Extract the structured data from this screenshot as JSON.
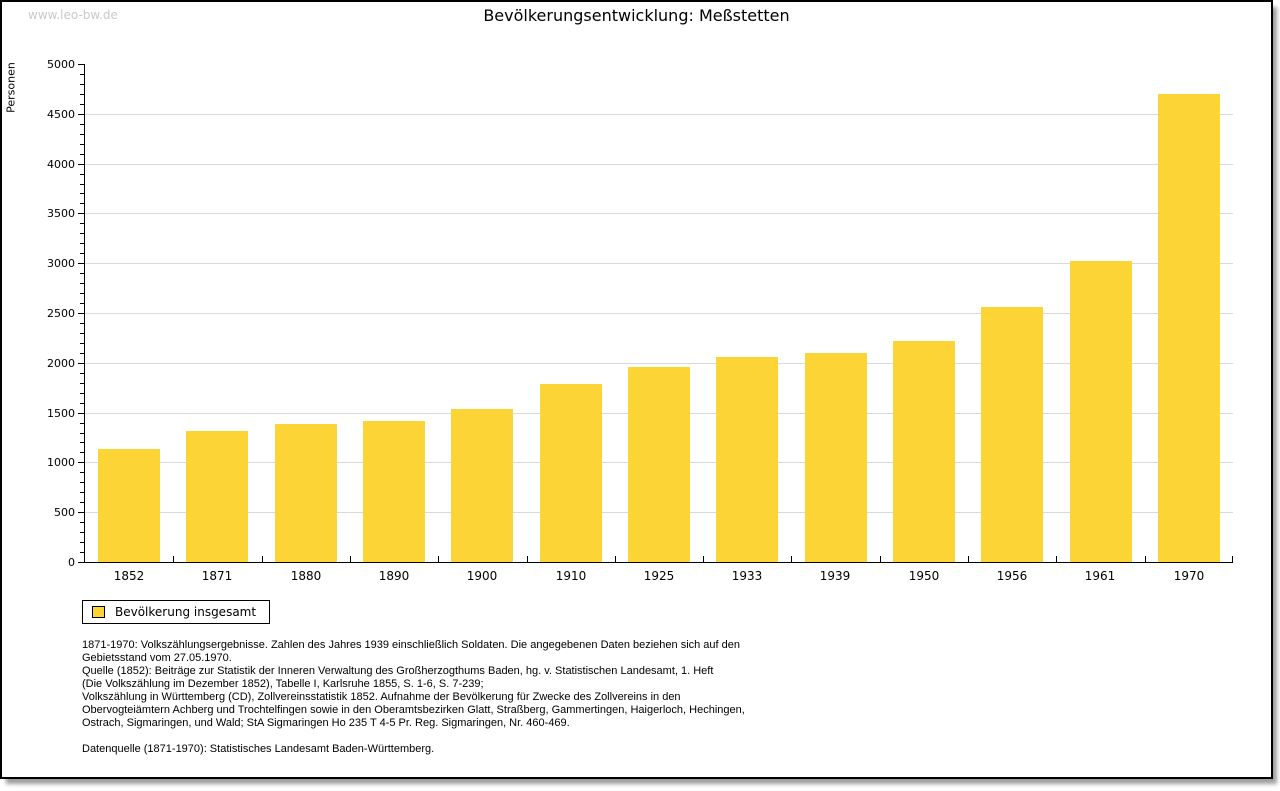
{
  "watermark": "www.leo-bw.de",
  "title": "Bevölkerungsentwicklung: Meßstetten",
  "colors": {
    "bar": "#fcd435",
    "grid": "#d9d9d9",
    "axis": "#000000",
    "watermark": "#c9c9c9"
  },
  "chart_data": {
    "type": "bar",
    "title": "Bevölkerungsentwicklung: Meßstetten",
    "xlabel": "",
    "ylabel": "Personen",
    "categories": [
      "1852",
      "1871",
      "1880",
      "1890",
      "1900",
      "1910",
      "1925",
      "1933",
      "1939",
      "1950",
      "1956",
      "1961",
      "1970"
    ],
    "series": [
      {
        "name": "Bevölkerung insgesamt",
        "values": [
          1130,
          1320,
          1390,
          1420,
          1540,
          1790,
          1960,
          2060,
          2100,
          2220,
          2560,
          3020,
          4700
        ]
      }
    ],
    "ylim": [
      0,
      5000
    ],
    "ytick_major_interval": 500,
    "ytick_minor_interval": 100,
    "grid": true,
    "legend_position": "bottom-left"
  },
  "legend": {
    "label": "Bevölkerung insgesamt"
  },
  "footnotes": {
    "lines": [
      "1871-1970: Volkszählungsergebnisse. Zahlen des Jahres 1939 einschließlich Soldaten. Die angegebenen Daten beziehen sich auf den",
      "Gebietsstand vom 27.05.1970.",
      "Quelle (1852): Beiträge zur Statistik der Inneren Verwaltung des Großherzogthums Baden, hg. v. Statistischen Landesamt, 1. Heft",
      "(Die Volkszählung im Dezember 1852), Tabelle I, Karlsruhe 1855, S. 1-6, S. 7-239;",
      "Volkszählung in Württemberg (CD), Zollvereinsstatistik 1852. Aufnahme der Bevölkerung für Zwecke des Zollvereins in den",
      "Obervogteiämtern Achberg und Trochtelfingen sowie in den Oberamtsbezirken Glatt, Straßberg, Gammertingen, Haigerloch, Hechingen,",
      "Ostrach, Sigmaringen, und Wald; StA Sigmaringen Ho 235 T 4-5 Pr. Reg. Sigmaringen, Nr. 460-469."
    ],
    "source": "Datenquelle (1871-1970): Statistisches Landesamt Baden-Württemberg."
  }
}
